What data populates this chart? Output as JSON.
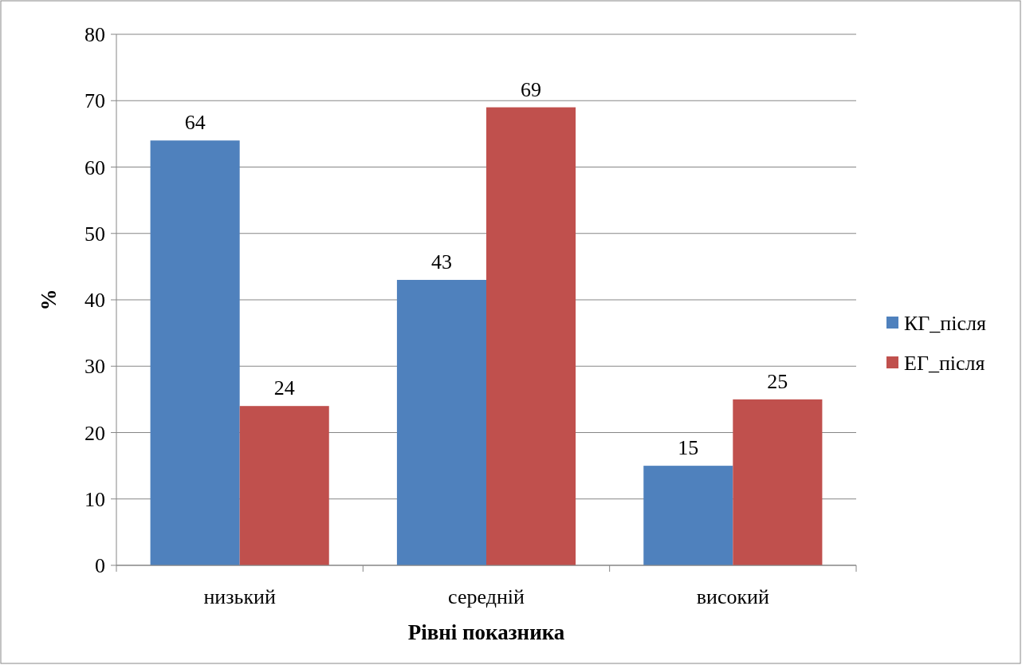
{
  "chart_data": {
    "type": "bar",
    "xlabel": "Рівні показника",
    "ylabel": "%",
    "categories": [
      "низький",
      "середній",
      "високий"
    ],
    "series": [
      {
        "name": "КГ_після",
        "color": "#4f81bd",
        "values": [
          64,
          43,
          15
        ]
      },
      {
        "name": "ЕГ_після",
        "color": "#c0504d",
        "values": [
          24,
          69,
          25
        ]
      }
    ],
    "ylim": [
      0,
      80
    ],
    "yticks": [
      0,
      10,
      20,
      30,
      40,
      50,
      60,
      70,
      80
    ],
    "grid": "y",
    "legend": "right",
    "data_labels": true
  }
}
